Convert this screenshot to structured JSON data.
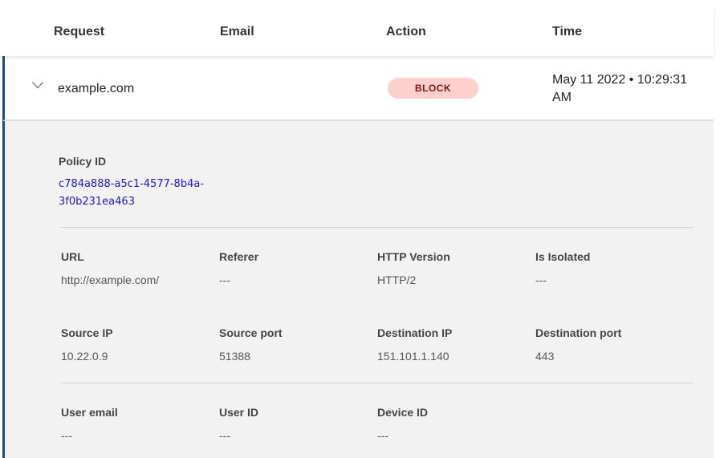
{
  "header": {
    "columns": [
      "Request",
      "Email",
      "Action",
      "Time"
    ]
  },
  "row": {
    "request": "example.com",
    "email": "",
    "action": "BLOCK",
    "time": "May 11 2022 • 10:29:31 AM"
  },
  "colors": {
    "accent": "#0a4ea3",
    "block_bg": "#fdcfcd",
    "block_text": "#8a1111",
    "link": "#1a1ad6"
  },
  "detail": {
    "policy_label": "Policy ID",
    "policy_id": "c784a888-a5c1-4577-8b4a-3f0b231ea463",
    "fields": [
      {
        "label": "URL",
        "value": "http://example.com/"
      },
      {
        "label": "Referer",
        "value": "---"
      },
      {
        "label": "HTTP Version",
        "value": "HTTP/2"
      },
      {
        "label": "Is Isolated",
        "value": "---"
      },
      {
        "label": "Source IP",
        "value": "10.22.0.9"
      },
      {
        "label": "Source port",
        "value": "51388"
      },
      {
        "label": "Destination IP",
        "value": "151.101.1.140"
      },
      {
        "label": "Destination port",
        "value": "443"
      },
      {
        "label": "User email",
        "value": "---"
      },
      {
        "label": "User ID",
        "value": "---"
      },
      {
        "label": "Device ID",
        "value": "---"
      }
    ]
  }
}
